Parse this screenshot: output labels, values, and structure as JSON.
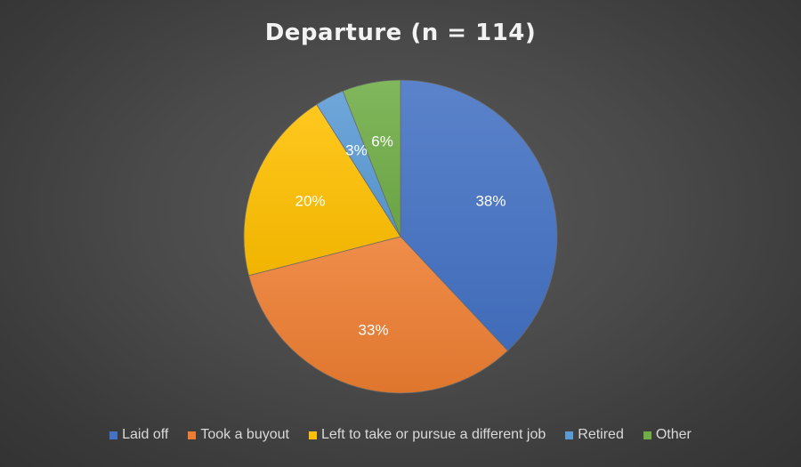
{
  "chart_data": {
    "type": "pie",
    "title": "Departure (n = 114)",
    "categories": [
      "Laid off",
      "Took a buyout",
      "Left to take or pursue a different job",
      "Retired",
      "Other"
    ],
    "values": [
      38,
      33,
      20,
      3,
      6
    ],
    "labels": [
      "38%",
      "33%",
      "20%",
      "3%",
      "6%"
    ],
    "colors": [
      "#4472c4",
      "#ed7d31",
      "#ffc000",
      "#5b9bd5",
      "#70ad47"
    ],
    "legend_position": "bottom"
  }
}
